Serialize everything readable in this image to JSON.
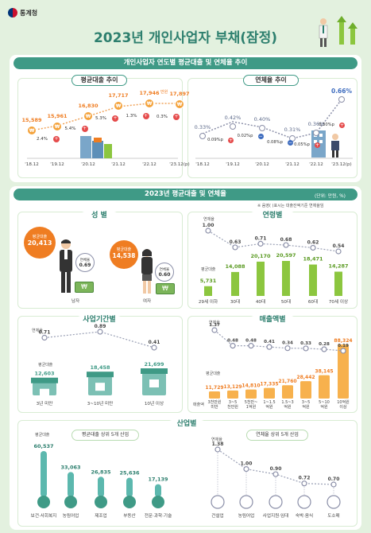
{
  "header": {
    "agency": "통계청",
    "title": "2023년 개인사업자 부채(잠정)"
  },
  "trend": {
    "banner": "개인사업자 연도별 평균대출 및 연체율 추이",
    "avg_title": "평균대출 추이",
    "rate_title": "연체율 추이",
    "years": [
      "'18.12",
      "'19.12",
      "'20.12",
      "'21.12",
      "'22.12",
      "'23.12(p)"
    ],
    "avg_values": [
      "15,589",
      "15,961",
      "16,830",
      "17,717",
      "17,946",
      "17,897"
    ],
    "avg_unit": "만원",
    "avg_changes": [
      "2.4%",
      "5.4%",
      "5.3%",
      "1.3%",
      "0.3%"
    ],
    "rate_values": [
      "0.33%",
      "0.42%",
      "0.40%",
      "0.31%",
      "0.36%",
      "0.66%"
    ],
    "rate_changes": [
      "0.09%p",
      "0.02%p",
      "0.08%p",
      "0.05%p",
      "0.30%p"
    ]
  },
  "y2023": {
    "banner": "2023년 평균대출 및 연체율",
    "unit": "(단위: 만원, %)",
    "note": "※ 음영(    )표시는 대출잔액기준 연체율임",
    "gender": {
      "title": "성 별",
      "loan_label": "평균대출",
      "rate_label": "연체율",
      "items": [
        {
          "name": "남자",
          "loan": "20,413",
          "rate": "0.69"
        },
        {
          "name": "여자",
          "loan": "14,538",
          "rate": "0.60"
        }
      ]
    },
    "age": {
      "title": "연령별",
      "loan_label": "평균대출",
      "rate_label": "연체율",
      "items": [
        {
          "name": "29세 이하",
          "loan": "5,731",
          "rate": "1.00"
        },
        {
          "name": "30대",
          "loan": "14,088",
          "rate": "0.63"
        },
        {
          "name": "40대",
          "loan": "20,170",
          "rate": "0.71"
        },
        {
          "name": "50대",
          "loan": "20,597",
          "rate": "0.68"
        },
        {
          "name": "60대",
          "loan": "18,471",
          "rate": "0.62"
        },
        {
          "name": "70세 이상",
          "loan": "14,287",
          "rate": "0.54"
        }
      ]
    },
    "period": {
      "title": "사업기간별",
      "loan_label": "평균대출",
      "rate_label": "연체율",
      "items": [
        {
          "name": "3년 미만",
          "loan": "12,603",
          "rate": "0.71"
        },
        {
          "name": "3~10년 미만",
          "loan": "18,458",
          "rate": "0.89"
        },
        {
          "name": "10년 이상",
          "loan": "21,699",
          "rate": "0.41"
        }
      ]
    },
    "revenue": {
      "title": "매출액별",
      "loan_label": "평균대출",
      "rate_label": "연체율",
      "axis_label": "매출액",
      "items": [
        {
          "name": "3천만원 미만",
          "loan": "11,729",
          "rate": "1.37"
        },
        {
          "name": "3~5 천만원",
          "loan": "13,129",
          "rate": "0.48"
        },
        {
          "name": "5천만~ 1억원",
          "loan": "14,810",
          "rate": "0.48"
        },
        {
          "name": "1~1.5 억원",
          "loan": "17,335",
          "rate": "0.41"
        },
        {
          "name": "1.5~3 억원",
          "loan": "21,760",
          "rate": "0.34"
        },
        {
          "name": "3~5 억원",
          "loan": "28,442",
          "rate": "0.33"
        },
        {
          "name": "5~10 억원",
          "loan": "38,145",
          "rate": "0.28"
        },
        {
          "name": "10억원 이상",
          "loan": "88,324",
          "rate": "0.19"
        }
      ]
    },
    "industry": {
      "title": "산업별",
      "loan_sub": "평균대출 상위 5개 산업",
      "loan_label": "평균대출",
      "loan_items": [
        {
          "name": "보건·사회복지",
          "value": "60,537"
        },
        {
          "name": "농림어업",
          "value": "33,063"
        },
        {
          "name": "제조업",
          "value": "26,835"
        },
        {
          "name": "부동산",
          "value": "25,636"
        },
        {
          "name": "전문·과학·기술",
          "value": "17,139"
        }
      ],
      "rate_sub": "연체율 상위 5개 산업",
      "rate_label": "연체율",
      "rate_items": [
        {
          "name": "건설업",
          "value": "1.38"
        },
        {
          "name": "농림어업",
          "value": "1.00"
        },
        {
          "name": "사업지원·임대",
          "value": "0.90"
        },
        {
          "name": "숙박·음식",
          "value": "0.72"
        },
        {
          "name": "도소매",
          "value": "0.70"
        }
      ]
    }
  }
}
